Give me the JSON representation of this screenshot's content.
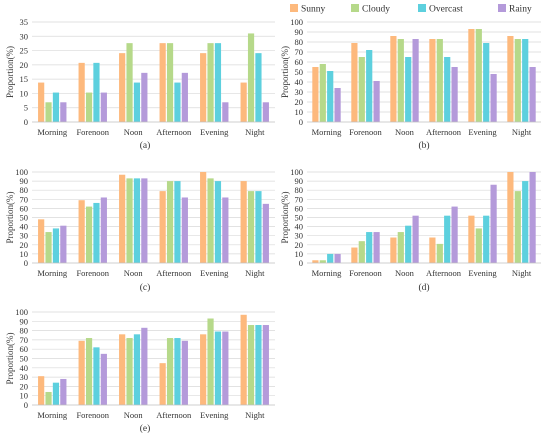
{
  "legend": {
    "entries": [
      {
        "label": "Sunny",
        "color": "#FDB97D"
      },
      {
        "label": "Cloudy",
        "color": "#B6D98A"
      },
      {
        "label": "Overcast",
        "color": "#5DD0DE"
      },
      {
        "label": "Rainy",
        "color": "#B49ADA"
      }
    ]
  },
  "chart_data": [
    {
      "type": "bar",
      "panel_label": "(a)",
      "ylabel": "Proportion(%)",
      "categories": [
        "Morning",
        "Forenoon",
        "Noon",
        "Afternoon",
        "Evening",
        "Night"
      ],
      "ylim": [
        0,
        35
      ],
      "yticks": [
        0,
        5,
        10,
        15,
        20,
        25,
        30,
        35
      ],
      "series": [
        {
          "name": "Sunny",
          "values": [
            13.8,
            20.7,
            24.1,
            27.6,
            24.1,
            13.8
          ]
        },
        {
          "name": "Cloudy",
          "values": [
            6.9,
            10.3,
            27.6,
            27.6,
            27.6,
            31.0
          ]
        },
        {
          "name": "Overcast",
          "values": [
            10.3,
            20.7,
            13.8,
            13.8,
            27.6,
            24.1
          ]
        },
        {
          "name": "Rainy",
          "values": [
            6.9,
            10.3,
            17.2,
            17.2,
            6.9,
            6.9
          ]
        }
      ]
    },
    {
      "type": "bar",
      "panel_label": "(b)",
      "ylabel": "Proportion(%)",
      "categories": [
        "Morning",
        "Forenoon",
        "Noon",
        "Afternoon",
        "Evening",
        "Night"
      ],
      "ylim": [
        0,
        100
      ],
      "yticks": [
        0,
        10,
        20,
        30,
        40,
        50,
        60,
        70,
        80,
        90,
        100
      ],
      "series": [
        {
          "name": "Sunny",
          "values": [
            55,
            79,
            86,
            83,
            93,
            86
          ]
        },
        {
          "name": "Cloudy",
          "values": [
            58,
            65,
            83,
            83,
            93,
            83
          ]
        },
        {
          "name": "Overcast",
          "values": [
            51,
            72,
            65,
            65,
            79,
            83
          ]
        },
        {
          "name": "Rainy",
          "values": [
            34,
            41,
            83,
            55,
            48,
            55
          ]
        }
      ]
    },
    {
      "type": "bar",
      "panel_label": "(c)",
      "ylabel": "Proportion(%)",
      "categories": [
        "Morning",
        "Forenoon",
        "Noon",
        "Afternoon",
        "Evening",
        "Night"
      ],
      "ylim": [
        0,
        100
      ],
      "yticks": [
        0,
        10,
        20,
        30,
        40,
        50,
        60,
        70,
        80,
        90,
        100
      ],
      "series": [
        {
          "name": "Sunny",
          "values": [
            48,
            69,
            97,
            79,
            100,
            90
          ]
        },
        {
          "name": "Cloudy",
          "values": [
            34,
            62,
            93,
            90,
            93,
            79
          ]
        },
        {
          "name": "Overcast",
          "values": [
            38,
            66,
            93,
            90,
            90,
            79
          ]
        },
        {
          "name": "Rainy",
          "values": [
            41,
            72,
            93,
            72,
            72,
            65
          ]
        }
      ]
    },
    {
      "type": "bar",
      "panel_label": "(d)",
      "ylabel": "Proportion(%)",
      "categories": [
        "Morning",
        "Forenoon",
        "Noon",
        "Afternoon",
        "Evening",
        "Night"
      ],
      "ylim": [
        0,
        100
      ],
      "yticks": [
        0,
        10,
        20,
        30,
        40,
        50,
        60,
        70,
        80,
        90,
        100
      ],
      "series": [
        {
          "name": "Sunny",
          "values": [
            3,
            17,
            28,
            28,
            52,
            100
          ]
        },
        {
          "name": "Cloudy",
          "values": [
            3,
            24,
            34,
            21,
            38,
            79
          ]
        },
        {
          "name": "Overcast",
          "values": [
            10,
            34,
            41,
            52,
            52,
            90
          ]
        },
        {
          "name": "Rainy",
          "values": [
            10,
            34,
            52,
            62,
            86,
            100
          ]
        }
      ]
    },
    {
      "type": "bar",
      "panel_label": "(e)",
      "ylabel": "Proportion(%)",
      "categories": [
        "Morning",
        "Forenoon",
        "Noon",
        "Afternoon",
        "Evening",
        "Night"
      ],
      "ylim": [
        0,
        100
      ],
      "yticks": [
        0,
        10,
        20,
        30,
        40,
        50,
        60,
        70,
        80,
        90,
        100
      ],
      "series": [
        {
          "name": "Sunny",
          "values": [
            31,
            69,
            76,
            45,
            76,
            97
          ]
        },
        {
          "name": "Cloudy",
          "values": [
            14,
            72,
            72,
            72,
            93,
            86
          ]
        },
        {
          "name": "Overcast",
          "values": [
            24,
            62,
            76,
            72,
            79,
            86
          ]
        },
        {
          "name": "Rainy",
          "values": [
            28,
            55,
            83,
            69,
            79,
            86
          ]
        }
      ]
    }
  ]
}
